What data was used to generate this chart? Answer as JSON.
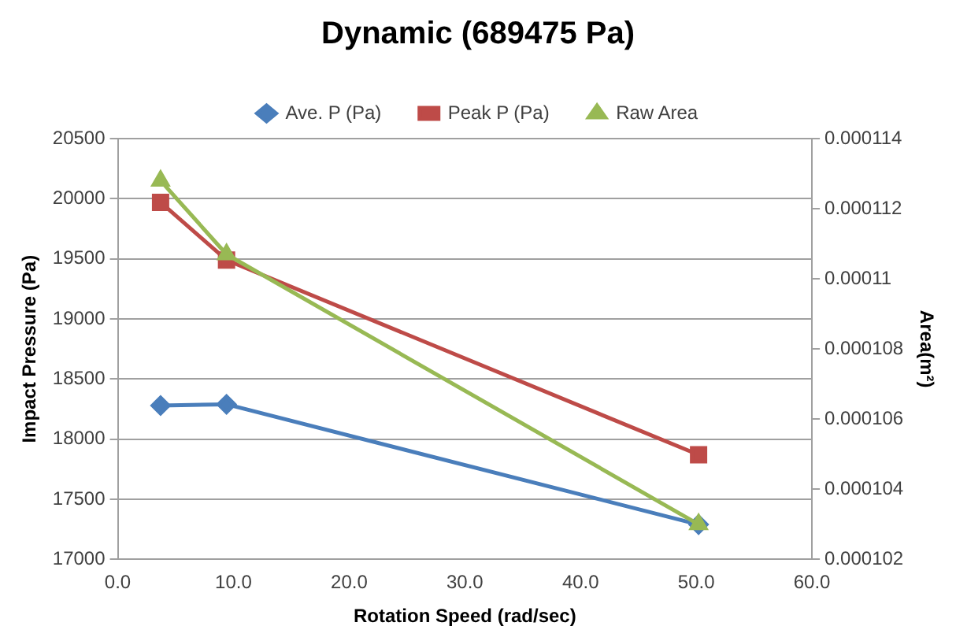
{
  "chart_data": {
    "type": "line",
    "title": "Dynamic (689475 Pa)",
    "xlabel": "Rotation Speed (rad/sec)",
    "ylabel": "Impact Pressure (Pa)",
    "y2label": "Area(m²)",
    "x": [
      3.7,
      9.4,
      50.2
    ],
    "series": [
      {
        "name": "Ave. P (Pa)",
        "color": "#4a7ebb",
        "marker": "diamond",
        "values": [
          18280,
          18290,
          17290
        ]
      },
      {
        "name": "Peak P (Pa)",
        "color": "#be4b48",
        "marker": "square",
        "values": [
          19970,
          19490,
          17870
        ]
      },
      {
        "name": "Raw Area",
        "color": "#98b954",
        "marker": "triangle",
        "axis": "y2",
        "values": [
          0.0001128,
          0.0001107,
          0.000103
        ]
      }
    ],
    "xlim": [
      0,
      60
    ],
    "xticks": [
      {
        "value": 0,
        "label": "0.0"
      },
      {
        "value": 10,
        "label": "10.0"
      },
      {
        "value": 20,
        "label": "20.0"
      },
      {
        "value": 30,
        "label": "30.0"
      },
      {
        "value": 40,
        "label": "40.0"
      },
      {
        "value": 50,
        "label": "50.0"
      },
      {
        "value": 60,
        "label": "60.0"
      }
    ],
    "ylim": [
      17000,
      20500
    ],
    "yticks": [
      17000,
      17500,
      18000,
      18500,
      19000,
      19500,
      20000,
      20500
    ],
    "y2lim": [
      0.000102,
      0.000114
    ],
    "y2ticks": [
      0.000102,
      0.000104,
      0.000106,
      0.000108,
      0.00011,
      0.000112,
      0.000114
    ],
    "grid": "y",
    "legend": "top",
    "line_style": "solid"
  }
}
